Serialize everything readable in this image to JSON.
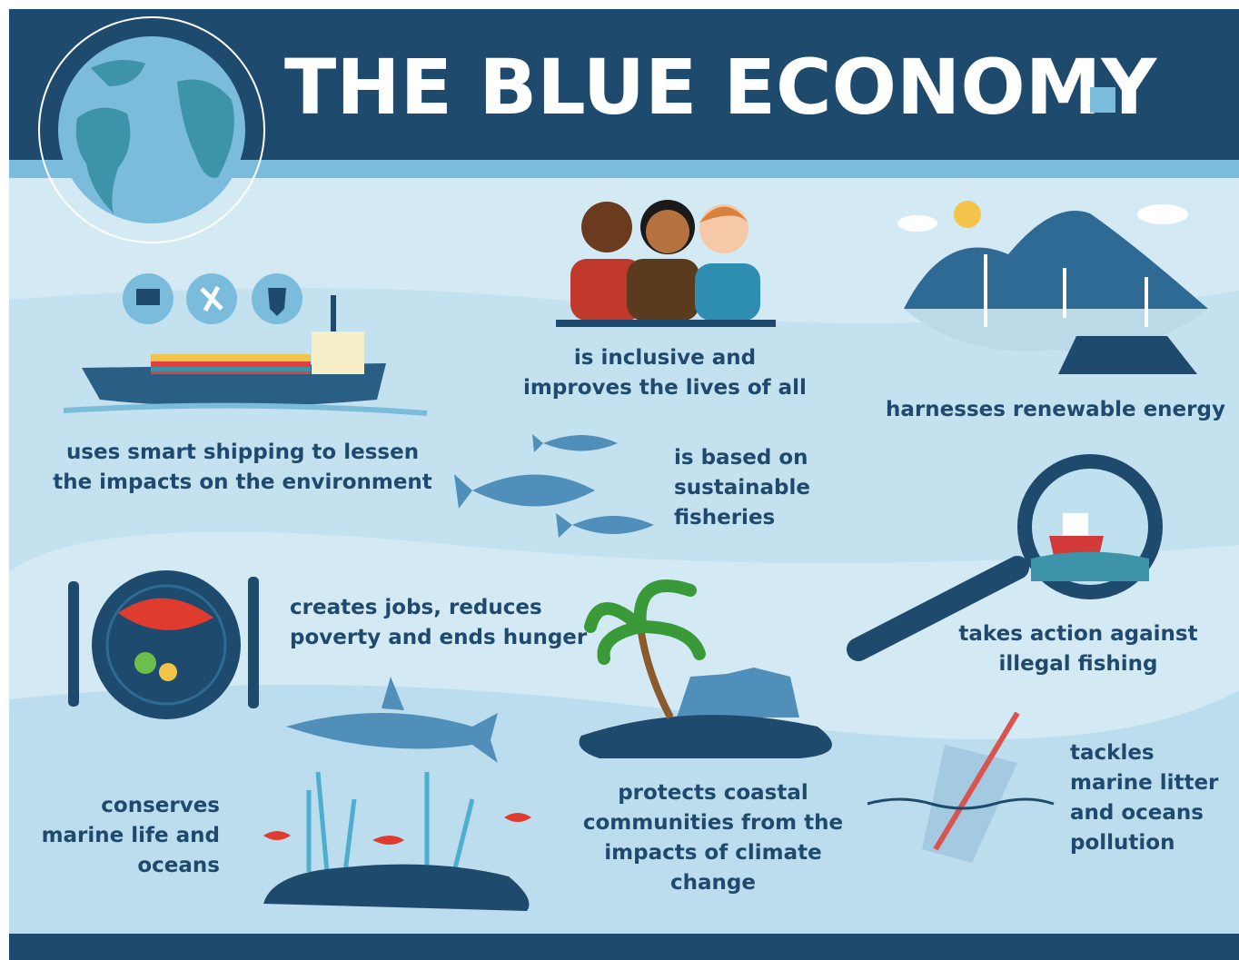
{
  "header": {
    "title": "THE BLUE ECONOMY"
  },
  "items": [
    {
      "lines": [
        "uses smart shipping to lessen",
        "the impacts on the environment"
      ]
    },
    {
      "lines": [
        "is inclusive and",
        "improves the lives of all"
      ]
    },
    {
      "lines": [
        "harnesses renewable energy"
      ]
    },
    {
      "lines": [
        "is based on",
        "sustainable",
        "fisheries"
      ]
    },
    {
      "lines": [
        "creates jobs, reduces",
        "poverty and ends hunger"
      ]
    },
    {
      "lines": [
        "takes action against",
        "illegal fishing"
      ]
    },
    {
      "lines": [
        "conserves",
        "marine life and",
        "oceans"
      ]
    },
    {
      "lines": [
        "protects coastal",
        "communities from the",
        "impacts of climate",
        "change"
      ]
    },
    {
      "lines": [
        "tackles",
        "marine litter",
        "and oceans",
        "pollution"
      ]
    }
  ]
}
